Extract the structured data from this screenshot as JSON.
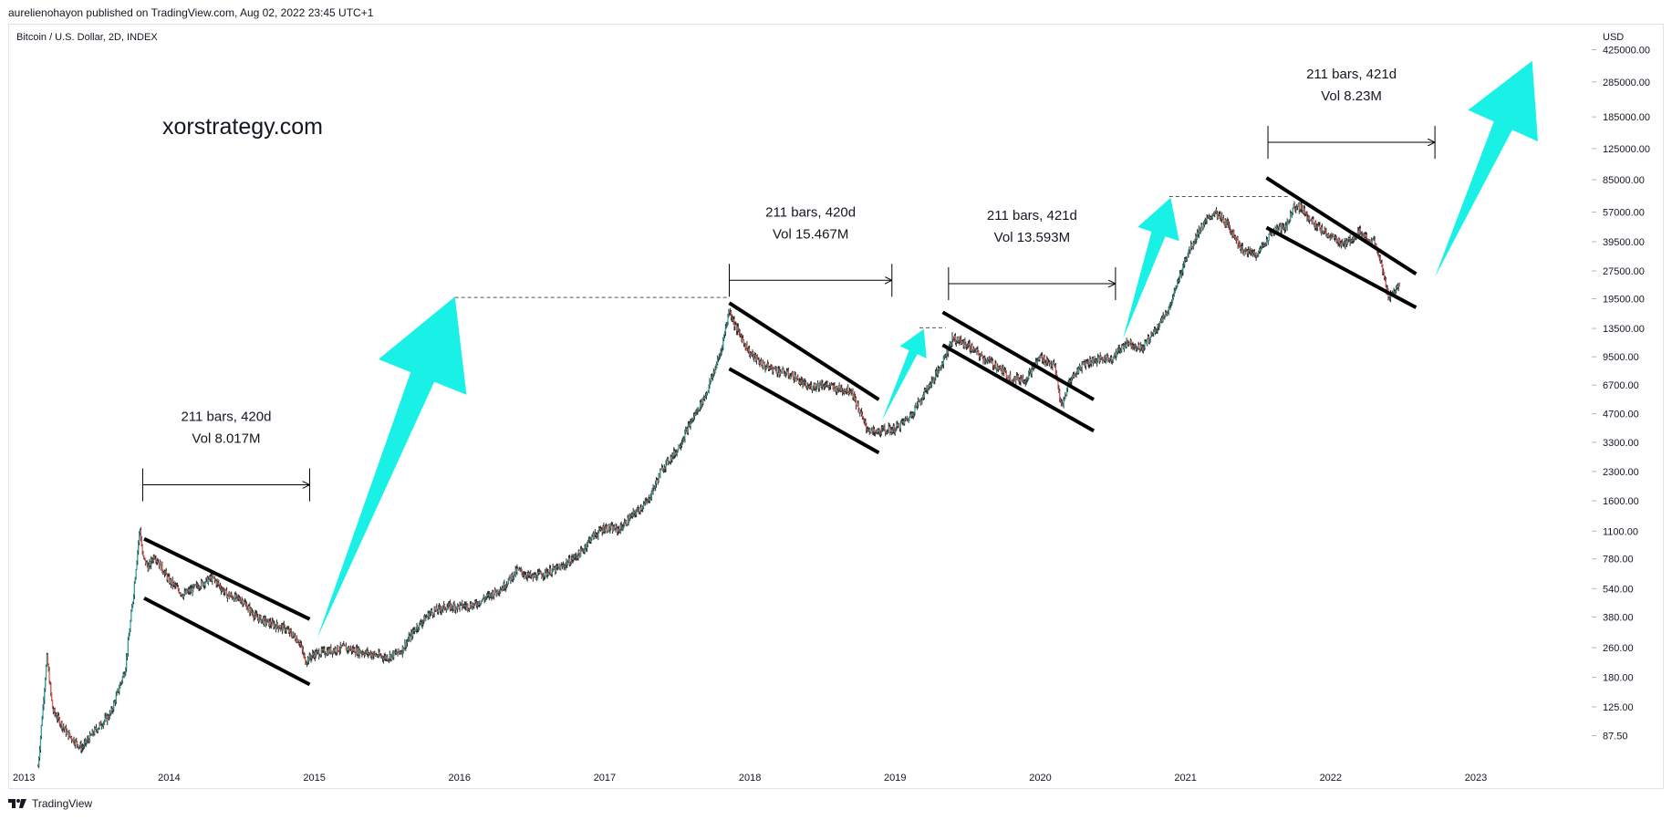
{
  "header": {
    "published": "aurelienohayon published on TradingView.com, Aug 02, 2022 23:45 UTC+1"
  },
  "symbol_label": "Bitcoin / U.S. Dollar, 2D, INDEX",
  "watermark": "xorstrategy.com",
  "footer": {
    "brand": "TradingView",
    "logo_icon": "tradingview-logo-icon"
  },
  "colors": {
    "arrow": "#19f0e6",
    "channel": "#000000",
    "candle_up": "#26a69a",
    "candle_down": "#ef5350",
    "wick": "#2b2b2b"
  },
  "chart_data": {
    "type": "line",
    "title": "",
    "ylabel": "USD",
    "log_scale": true,
    "x_ticks": [
      "2013",
      "2014",
      "2015",
      "2016",
      "2017",
      "2018",
      "2019",
      "2020",
      "2021",
      "2022",
      "2023"
    ],
    "y_ticks": [
      "425000.00",
      "285000.00",
      "185000.00",
      "125000.00",
      "85000.00",
      "57000.00",
      "39500.00",
      "27500.00",
      "19500.00",
      "13500.00",
      "9500.00",
      "6700.00",
      "4700.00",
      "3300.00",
      "2300.00",
      "1600.00",
      "1100.00",
      "780.00",
      "540.00",
      "380.00",
      "260.00",
      "180.00",
      "125.00",
      "87.50"
    ],
    "xlim": [
      2013.0,
      2023.9
    ],
    "ylim": [
      60,
      560000
    ],
    "series": [
      {
        "x": [
          2013.2,
          2013.26,
          2013.3,
          2013.4,
          2013.5,
          2013.6,
          2013.7,
          2013.8,
          2013.85,
          2013.9,
          2013.92,
          2013.96,
          2014.0,
          2014.1,
          2014.2,
          2014.3,
          2014.4,
          2014.5,
          2014.6,
          2014.7,
          2014.8,
          2014.9,
          2015.0,
          2015.04,
          2015.1,
          2015.3,
          2015.5,
          2015.6,
          2015.7,
          2015.8,
          2015.9,
          2016.0,
          2016.2,
          2016.4,
          2016.5,
          2016.6,
          2016.8,
          2016.95,
          2017.0,
          2017.1,
          2017.2,
          2017.3,
          2017.4,
          2017.5,
          2017.6,
          2017.7,
          2017.8,
          2017.9,
          2017.96,
          2018.0,
          2018.1,
          2018.2,
          2018.3,
          2018.4,
          2018.5,
          2018.6,
          2018.7,
          2018.8,
          2018.9,
          2018.96,
          2019.0,
          2019.1,
          2019.2,
          2019.3,
          2019.4,
          2019.5,
          2019.6,
          2019.7,
          2019.8,
          2019.9,
          2020.0,
          2020.1,
          2020.2,
          2020.25,
          2020.3,
          2020.4,
          2020.5,
          2020.6,
          2020.7,
          2020.8,
          2020.9,
          2021.0,
          2021.1,
          2021.2,
          2021.3,
          2021.4,
          2021.5,
          2021.6,
          2021.7,
          2021.8,
          2021.85,
          2021.9,
          2022.0,
          2022.1,
          2022.2,
          2022.3,
          2022.4,
          2022.45,
          2022.5,
          2022.58
        ],
        "y": [
          60,
          230,
          120,
          90,
          75,
          95,
          115,
          200,
          450,
          1150,
          800,
          700,
          820,
          600,
          500,
          560,
          620,
          500,
          470,
          380,
          350,
          330,
          280,
          220,
          240,
          260,
          240,
          230,
          250,
          330,
          400,
          430,
          440,
          550,
          680,
          620,
          700,
          860,
          1000,
          1150,
          1120,
          1350,
          1600,
          2400,
          3000,
          4300,
          6000,
          10000,
          17000,
          14000,
          10000,
          8500,
          8000,
          7500,
          6500,
          6800,
          6400,
          6300,
          4000,
          3700,
          3800,
          3900,
          4500,
          6000,
          8000,
          12000,
          11000,
          9500,
          8500,
          7300,
          7200,
          9500,
          8500,
          5000,
          7000,
          8800,
          9200,
          9400,
          11500,
          10500,
          13500,
          18000,
          32000,
          46000,
          57000,
          48000,
          35000,
          34000,
          45000,
          48000,
          62000,
          60000,
          48000,
          42000,
          38000,
          45000,
          39000,
          30000,
          20000,
          23000
        ]
      }
    ],
    "measurements": [
      {
        "bars": "211 bars, 420d",
        "vol": "Vol 8.017M"
      },
      {
        "bars": "211 bars, 420d",
        "vol": "Vol 15.467M"
      },
      {
        "bars": "211 bars, 421d",
        "vol": "Vol 13.593M"
      },
      {
        "bars": "211 bars, 421d",
        "vol": "Vol 8.23M"
      }
    ]
  }
}
